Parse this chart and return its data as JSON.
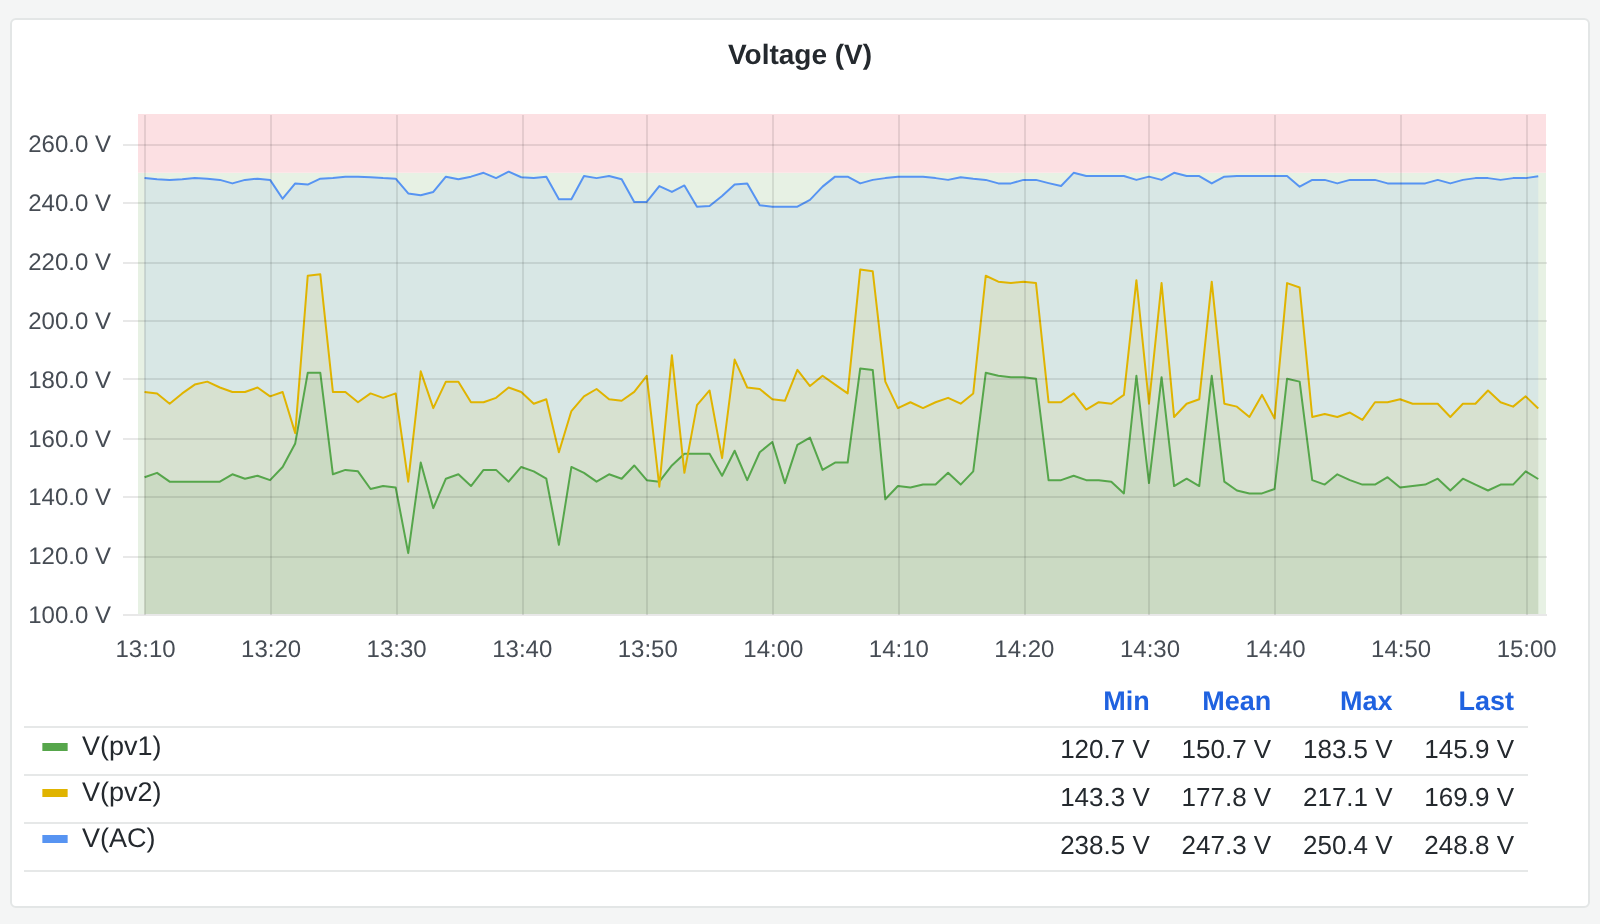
{
  "chart_data": {
    "type": "area",
    "title": "Voltage (V)",
    "x": [
      13.1667,
      13.1833,
      13.2,
      13.2167,
      13.2333,
      13.25,
      13.2667,
      13.2833,
      13.3,
      13.3167,
      13.3333,
      13.35,
      13.3667,
      13.3833,
      13.4,
      13.4167,
      13.4333,
      13.45,
      13.4667,
      13.4833,
      13.5,
      13.5167,
      13.5333,
      13.55,
      13.5667,
      13.5833,
      13.6,
      13.6167,
      13.6333,
      13.65,
      13.6667,
      13.6833,
      13.7,
      13.7167,
      13.7333,
      13.75,
      13.7667,
      13.7833,
      13.8,
      13.8167,
      13.8333,
      13.85,
      13.8667,
      13.8833,
      13.9,
      13.9167,
      13.9333,
      13.95,
      13.9667,
      13.9833,
      14,
      14.0167,
      14.0333,
      14.05,
      14.0667,
      14.0833,
      14.1,
      14.1167,
      14.1333,
      14.15,
      14.1667,
      14.1833,
      14.2,
      14.2167,
      14.2333,
      14.25,
      14.2667,
      14.2833,
      14.3,
      14.3167,
      14.3333,
      14.35,
      14.3667,
      14.3833,
      14.4,
      14.4167,
      14.4333,
      14.45,
      14.4667,
      14.4833,
      14.5,
      14.5167,
      14.5333,
      14.55,
      14.5667,
      14.5833,
      14.6,
      14.6167,
      14.6333,
      14.65,
      14.6667,
      14.6833,
      14.7,
      14.7167,
      14.7333,
      14.75,
      14.7667,
      14.7833,
      14.8,
      14.8167,
      14.8333,
      14.85,
      14.8667,
      14.8833,
      14.9,
      14.9167,
      14.9333,
      14.95,
      14.9667,
      14.9833,
      15,
      15.0167
    ],
    "series": [
      {
        "name": "V(pv1)",
        "color": "#56a64b",
        "values": [
          146.5,
          148,
          145,
          145,
          145,
          145,
          145,
          147.5,
          146,
          147,
          145.5,
          150,
          158,
          182,
          182,
          147.5,
          149,
          148.5,
          142.5,
          143.5,
          143,
          120.7,
          151.5,
          136,
          146,
          147.5,
          143.5,
          149,
          149,
          145,
          150,
          148.5,
          146,
          123.5,
          150,
          148,
          145,
          147.5,
          146,
          150.5,
          145.5,
          145,
          150.5,
          154.5,
          154.5,
          154.5,
          147,
          155.5,
          145.5,
          155,
          158.5,
          144.5,
          157.5,
          160,
          149,
          151.5,
          151.5,
          183.5,
          183,
          139,
          143.5,
          143,
          144,
          144,
          148,
          144,
          148.5,
          182,
          181,
          180.5,
          180.5,
          180,
          145.5,
          145.5,
          147,
          145.5,
          145.5,
          145,
          141,
          181,
          144.5,
          180.5,
          143.5,
          146,
          143.5,
          181,
          145,
          142,
          141,
          141,
          142.5,
          180,
          179,
          145.5,
          144,
          147.5,
          145.5,
          144,
          144,
          146.5,
          143,
          143.5,
          144,
          146,
          142,
          146,
          144,
          142,
          144,
          144,
          148.5,
          145.9
        ]
      },
      {
        "name": "V(pv2)",
        "color": "#e0b400",
        "values": [
          175.5,
          175,
          171.5,
          175,
          178,
          179,
          177,
          175.5,
          175.5,
          177,
          174,
          175.5,
          161.5,
          215,
          215.5,
          175.5,
          175.5,
          172,
          175,
          173.5,
          175,
          145,
          182.5,
          170,
          179,
          179,
          172,
          172,
          173.5,
          177,
          175.5,
          171.5,
          173,
          155,
          169,
          174,
          176.5,
          173,
          172.5,
          175.5,
          181,
          143.3,
          188,
          148,
          171,
          176,
          153,
          186.5,
          177,
          176.5,
          173,
          172.5,
          183,
          177.5,
          181,
          178,
          175,
          217.1,
          216.5,
          179,
          170,
          172,
          170,
          172,
          173.5,
          171.5,
          175,
          215,
          213,
          212.5,
          213,
          212.5,
          172,
          172,
          175,
          169.5,
          172,
          171.5,
          174.5,
          213.5,
          171.5,
          212.5,
          167,
          171.5,
          173,
          213,
          171.5,
          170.5,
          167,
          174.5,
          166.5,
          212.5,
          211,
          167,
          168,
          167,
          168.5,
          166,
          172,
          172,
          173,
          171.5,
          171.5,
          171.5,
          167,
          171.5,
          171.5,
          176,
          172,
          170.5,
          174,
          169.9
        ]
      },
      {
        "name": "V(AC)",
        "color": "#5794f2",
        "values": [
          248.2,
          247.8,
          247.6,
          247.8,
          248.2,
          248,
          247.6,
          246.4,
          247.6,
          248,
          247.6,
          241.2,
          246.4,
          246,
          248,
          248.2,
          248.7,
          248.7,
          248.5,
          248.2,
          248,
          243,
          242.4,
          243.5,
          248.7,
          247.8,
          248.7,
          250,
          248.2,
          250.4,
          248.5,
          248.2,
          248.7,
          241,
          241,
          248.9,
          248.2,
          248.9,
          247.8,
          240.1,
          240.1,
          245.5,
          243.5,
          245.7,
          238.5,
          238.7,
          242.1,
          246,
          246.4,
          239,
          238.5,
          238.5,
          238.5,
          240.8,
          245.3,
          248.7,
          248.7,
          246.4,
          247.6,
          248.2,
          248.7,
          248.7,
          248.7,
          248.2,
          247.6,
          248.5,
          248,
          247.6,
          246.4,
          246.4,
          247.6,
          247.6,
          246.5,
          245.5,
          250,
          248.9,
          248.9,
          248.9,
          248.9,
          247.6,
          248.7,
          247.6,
          250,
          248.9,
          248.9,
          246.4,
          248.7,
          248.9,
          248.9,
          248.9,
          248.9,
          248.9,
          245.3,
          247.6,
          247.6,
          246.4,
          247.6,
          247.6,
          247.6,
          246.4,
          246.4,
          246.4,
          246.4,
          247.6,
          246.4,
          247.6,
          248.2,
          248.2,
          247.6,
          248.2,
          248.2,
          248.8
        ]
      }
    ],
    "xlim": [
      13.158,
      15.027
    ],
    "xticks": [
      {
        "value": 13.1667,
        "label": "13:10"
      },
      {
        "value": 13.3333,
        "label": "13:20"
      },
      {
        "value": 13.5,
        "label": "13:30"
      },
      {
        "value": 13.6667,
        "label": "13:40"
      },
      {
        "value": 13.8333,
        "label": "13:50"
      },
      {
        "value": 14,
        "label": "14:00"
      },
      {
        "value": 14.1667,
        "label": "14:10"
      },
      {
        "value": 14.3333,
        "label": "14:20"
      },
      {
        "value": 14.5,
        "label": "14:30"
      },
      {
        "value": 14.6667,
        "label": "14:40"
      },
      {
        "value": 14.8333,
        "label": "14:50"
      },
      {
        "value": 15,
        "label": "15:00"
      }
    ],
    "ylim": [
      100,
      270
    ],
    "yticks": [
      {
        "value": 100,
        "label": "100.0 V"
      },
      {
        "value": 120,
        "label": "120.0 V"
      },
      {
        "value": 140,
        "label": "140.0 V"
      },
      {
        "value": 160,
        "label": "160.0 V"
      },
      {
        "value": 180,
        "label": "180.0 V"
      },
      {
        "value": 200,
        "label": "200.0 V"
      },
      {
        "value": 220,
        "label": "220.0 V"
      },
      {
        "value": 240,
        "label": "240.0 V"
      },
      {
        "value": 260,
        "label": "260.0 V"
      }
    ],
    "bands": [
      {
        "axis": "y",
        "from": 100,
        "to": 250,
        "color": "#e7f1e4"
      },
      {
        "axis": "y",
        "from": 250,
        "to": 270,
        "color": "#fce0e3"
      }
    ],
    "grid": true,
    "legend": "bottom",
    "annotations": [
      "Min",
      "Mean",
      "Max",
      "Last",
      "120.7 V",
      "150.7 V",
      "183.5 V",
      "145.9 V",
      "143.3 V",
      "177.8 V",
      "217.1 V",
      "169.9 V",
      "238.5 V",
      "247.3 V",
      "250.4 V",
      "248.8 V"
    ]
  }
}
